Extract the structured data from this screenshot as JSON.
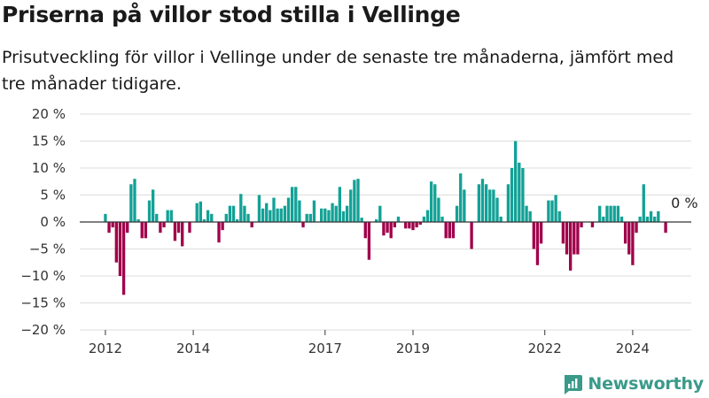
{
  "title": "Priserna på villor stod stilla i Vellinge",
  "subtitle": "Prisutveckling för villor i Vellinge under de senaste tre månaderna, jämfört med tre månader tidigare.",
  "brand": "Newsworthy",
  "colors": {
    "positive": "#13a196",
    "negative": "#a0004a",
    "grid": "#dddddd",
    "baseline": "#333333",
    "brand": "#3a9a8a"
  },
  "chart_data": {
    "type": "bar",
    "ylim": [
      -20,
      20
    ],
    "yticks": [
      -20,
      -15,
      -10,
      -5,
      0,
      5,
      10,
      15,
      20
    ],
    "ytick_labels": [
      "−20 %",
      "−15 %",
      "−10 %",
      "−5 %",
      "0 %",
      "5 %",
      "10 %",
      "15 %",
      "20 %"
    ],
    "xlim": [
      "2011-06",
      "2025-05"
    ],
    "xticks": [
      "2012-01",
      "2014-01",
      "2017-01",
      "2019-01",
      "2022-01",
      "2024-01"
    ],
    "xtick_labels": [
      "2012",
      "2014",
      "2017",
      "2019",
      "2022",
      "2024"
    ],
    "annotation": "0 %",
    "points": [
      [
        "2012-01",
        1.5
      ],
      [
        "2012-02",
        -2
      ],
      [
        "2012-03",
        -1
      ],
      [
        "2012-04",
        -7.5
      ],
      [
        "2012-05",
        -10
      ],
      [
        "2012-06",
        -13.5
      ],
      [
        "2012-07",
        -2
      ],
      [
        "2012-08",
        7
      ],
      [
        "2012-09",
        8
      ],
      [
        "2012-10",
        0.5
      ],
      [
        "2012-11",
        -3
      ],
      [
        "2012-12",
        -3
      ],
      [
        "2013-01",
        4
      ],
      [
        "2013-02",
        6
      ],
      [
        "2013-03",
        1.5
      ],
      [
        "2013-04",
        -2
      ],
      [
        "2013-05",
        -1
      ],
      [
        "2013-06",
        2.2
      ],
      [
        "2013-07",
        2.2
      ],
      [
        "2013-08",
        -3.5
      ],
      [
        "2013-09",
        -2
      ],
      [
        "2013-10",
        -4.5
      ],
      [
        "2013-11",
        0
      ],
      [
        "2013-12",
        -2
      ],
      [
        "2014-02",
        3.5
      ],
      [
        "2014-03",
        3.8
      ],
      [
        "2014-04",
        0.5
      ],
      [
        "2014-05",
        2.2
      ],
      [
        "2014-06",
        1.5
      ],
      [
        "2014-08",
        -3.8
      ],
      [
        "2014-09",
        -1.5
      ],
      [
        "2014-10",
        1.5
      ],
      [
        "2014-11",
        3
      ],
      [
        "2014-12",
        3
      ],
      [
        "2015-01",
        0.5
      ],
      [
        "2015-02",
        5.2
      ],
      [
        "2015-03",
        3
      ],
      [
        "2015-04",
        1.5
      ],
      [
        "2015-05",
        -1
      ],
      [
        "2015-06",
        0
      ],
      [
        "2015-07",
        5
      ],
      [
        "2015-08",
        2.5
      ],
      [
        "2015-09",
        3.5
      ],
      [
        "2015-10",
        2.2
      ],
      [
        "2015-11",
        4.5
      ],
      [
        "2015-12",
        2.5
      ],
      [
        "2016-01",
        2.5
      ],
      [
        "2016-02",
        3
      ],
      [
        "2016-03",
        4.5
      ],
      [
        "2016-04",
        6.5
      ],
      [
        "2016-05",
        6.5
      ],
      [
        "2016-06",
        4
      ],
      [
        "2016-07",
        -1
      ],
      [
        "2016-08",
        1.5
      ],
      [
        "2016-09",
        1.5
      ],
      [
        "2016-10",
        4
      ],
      [
        "2016-11",
        0
      ],
      [
        "2016-12",
        2.5
      ],
      [
        "2017-01",
        2.5
      ],
      [
        "2017-02",
        2.2
      ],
      [
        "2017-03",
        3.5
      ],
      [
        "2017-04",
        3
      ],
      [
        "2017-05",
        6.5
      ],
      [
        "2017-06",
        2
      ],
      [
        "2017-07",
        3
      ],
      [
        "2017-08",
        6
      ],
      [
        "2017-09",
        7.8
      ],
      [
        "2017-10",
        8
      ],
      [
        "2017-11",
        0.8
      ],
      [
        "2017-12",
        -3
      ],
      [
        "2018-01",
        -7
      ],
      [
        "2018-02",
        0
      ],
      [
        "2018-03",
        0.5
      ],
      [
        "2018-04",
        3
      ],
      [
        "2018-05",
        -2.5
      ],
      [
        "2018-06",
        -2
      ],
      [
        "2018-07",
        -3
      ],
      [
        "2018-08",
        -1
      ],
      [
        "2018-09",
        1
      ],
      [
        "2018-11",
        -1.2
      ],
      [
        "2018-12",
        -1.2
      ],
      [
        "2019-01",
        -1.5
      ],
      [
        "2019-02",
        -1
      ],
      [
        "2019-03",
        -0.5
      ],
      [
        "2019-04",
        1
      ],
      [
        "2019-05",
        2.2
      ],
      [
        "2019-06",
        7.5
      ],
      [
        "2019-07",
        7
      ],
      [
        "2019-08",
        4.5
      ],
      [
        "2019-09",
        1
      ],
      [
        "2019-10",
        -3
      ],
      [
        "2019-11",
        -3
      ],
      [
        "2019-12",
        -3
      ],
      [
        "2020-01",
        3
      ],
      [
        "2020-02",
        9
      ],
      [
        "2020-03",
        6
      ],
      [
        "2020-04",
        0
      ],
      [
        "2020-05",
        -5
      ],
      [
        "2020-06",
        0
      ],
      [
        "2020-07",
        7
      ],
      [
        "2020-08",
        8
      ],
      [
        "2020-09",
        7
      ],
      [
        "2020-10",
        6
      ],
      [
        "2020-11",
        6
      ],
      [
        "2020-12",
        4.5
      ],
      [
        "2021-01",
        1
      ],
      [
        "2021-02",
        0
      ],
      [
        "2021-03",
        7
      ],
      [
        "2021-04",
        10
      ],
      [
        "2021-05",
        15
      ],
      [
        "2021-06",
        11
      ],
      [
        "2021-07",
        10
      ],
      [
        "2021-08",
        3
      ],
      [
        "2021-09",
        2
      ],
      [
        "2021-10",
        -5
      ],
      [
        "2021-11",
        -8
      ],
      [
        "2021-12",
        -4
      ],
      [
        "2022-01",
        0
      ],
      [
        "2022-02",
        4
      ],
      [
        "2022-03",
        4
      ],
      [
        "2022-04",
        5
      ],
      [
        "2022-05",
        2
      ],
      [
        "2022-06",
        -4
      ],
      [
        "2022-07",
        -6
      ],
      [
        "2022-08",
        -9
      ],
      [
        "2022-09",
        -6
      ],
      [
        "2022-10",
        -6
      ],
      [
        "2022-11",
        -1
      ],
      [
        "2022-12",
        0
      ],
      [
        "2023-01",
        0
      ],
      [
        "2023-02",
        -1
      ],
      [
        "2023-03",
        0
      ],
      [
        "2023-04",
        3
      ],
      [
        "2023-05",
        1
      ],
      [
        "2023-06",
        3
      ],
      [
        "2023-07",
        3
      ],
      [
        "2023-08",
        3
      ],
      [
        "2023-09",
        3
      ],
      [
        "2023-10",
        1
      ],
      [
        "2023-11",
        -4
      ],
      [
        "2023-12",
        -6
      ],
      [
        "2024-01",
        -8
      ],
      [
        "2024-02",
        -2
      ],
      [
        "2024-03",
        1
      ],
      [
        "2024-04",
        7
      ],
      [
        "2024-05",
        1
      ],
      [
        "2024-06",
        2
      ],
      [
        "2024-07",
        1
      ],
      [
        "2024-08",
        2
      ],
      [
        "2024-09",
        0
      ],
      [
        "2024-10",
        -2
      ]
    ]
  }
}
